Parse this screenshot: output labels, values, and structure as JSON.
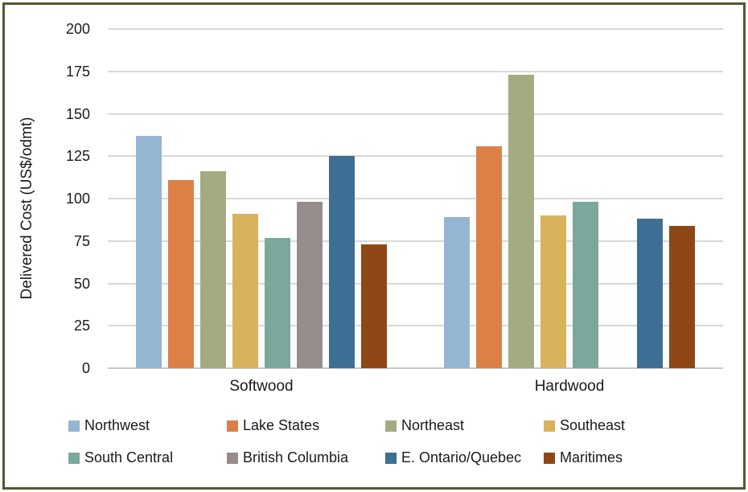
{
  "chart_data": {
    "type": "bar",
    "title": "",
    "xlabel": "",
    "ylabel": "Delivered Cost (US$/odmt)",
    "categories": [
      "Softwood",
      "Hardwood"
    ],
    "series": [
      {
        "name": "Northwest",
        "color": "#94B6D2",
        "values": [
          137,
          89
        ]
      },
      {
        "name": "Lake States",
        "color": "#DD8047",
        "values": [
          111,
          131
        ]
      },
      {
        "name": "Northeast",
        "color": "#A5AB81",
        "values": [
          116,
          173
        ]
      },
      {
        "name": "Southeast",
        "color": "#D8B25C",
        "values": [
          91,
          90
        ]
      },
      {
        "name": "South Central",
        "color": "#7BA79D",
        "values": [
          77,
          98
        ]
      },
      {
        "name": "British Columbia",
        "color": "#968C8C",
        "values": [
          98,
          null
        ]
      },
      {
        "name": "E. Ontario/Quebec",
        "color": "#3E6E94",
        "values": [
          125,
          88
        ]
      },
      {
        "name": "Maritimes",
        "color": "#904716",
        "values": [
          73,
          84
        ]
      }
    ],
    "ylim": [
      0,
      200
    ],
    "yticks": [
      0,
      25,
      50,
      75,
      100,
      125,
      150,
      175,
      200
    ],
    "grid": true,
    "legend_position": "bottom",
    "legend_columns": 4
  },
  "style": {
    "frame_border_color": "#585634",
    "gridline_color": "#d9d9d9",
    "baseline_color": "#c9c9c9",
    "text_color": "#1a1a1a",
    "background_color": "#ffffff"
  }
}
